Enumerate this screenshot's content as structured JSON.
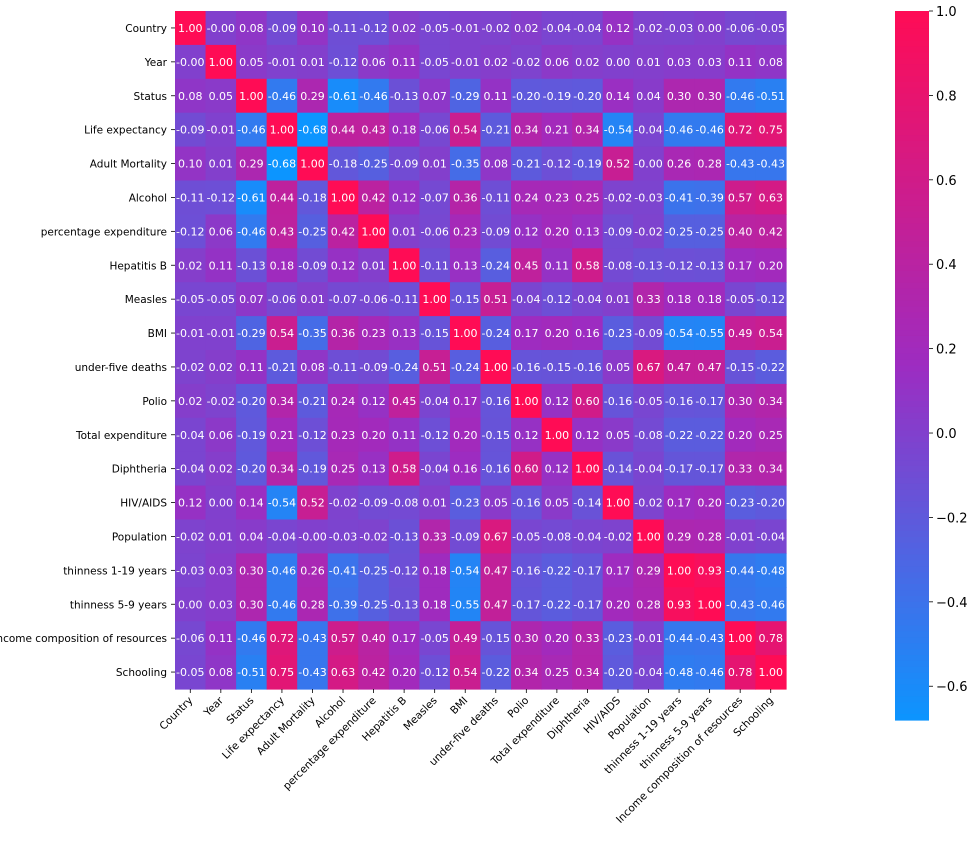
{
  "chart_data": {
    "type": "heatmap",
    "title": "",
    "xlabel": "",
    "ylabel": "",
    "colormap": {
      "low": "#0c95ff",
      "mid": "#9d2cc1",
      "high": "#ff0c55"
    },
    "value_range": [
      -0.68,
      1.0
    ],
    "colorbar_ticks": [
      "1.0",
      "0.8",
      "0.6",
      "0.4",
      "0.2",
      "0.0",
      "−0.2",
      "−0.4",
      "−0.6"
    ],
    "labels": [
      "Country",
      "Year",
      "Status",
      "Life expectancy ",
      "Adult Mortality",
      "Alcohol",
      "percentage expenditure",
      "Hepatitis B",
      "Measles ",
      " BMI ",
      "under-five deaths ",
      "Polio",
      "Total expenditure",
      "Diphtheria ",
      " HIV/AIDS",
      "Population",
      " thinness  1-19 years",
      " thinness 5-9 years",
      "Income composition of resources",
      "Schooling"
    ],
    "matrix": [
      [
        1.0,
        -0.0,
        0.08,
        -0.09,
        0.1,
        -0.11,
        -0.12,
        0.02,
        -0.05,
        -0.01,
        -0.02,
        0.02,
        -0.04,
        -0.04,
        0.12,
        -0.02,
        -0.03,
        0.0,
        -0.06,
        -0.05
      ],
      [
        -0.0,
        1.0,
        0.05,
        -0.01,
        0.01,
        -0.12,
        0.06,
        0.11,
        -0.05,
        -0.01,
        0.02,
        -0.02,
        0.06,
        0.02,
        0.0,
        0.01,
        0.03,
        0.03,
        0.11,
        0.08
      ],
      [
        0.08,
        0.05,
        1.0,
        -0.46,
        0.29,
        -0.61,
        -0.46,
        -0.13,
        0.07,
        -0.29,
        0.11,
        -0.2,
        -0.19,
        -0.2,
        0.14,
        0.04,
        0.3,
        0.3,
        -0.46,
        -0.51
      ],
      [
        -0.09,
        -0.01,
        -0.46,
        1.0,
        -0.68,
        0.44,
        0.43,
        0.18,
        -0.06,
        0.54,
        -0.21,
        0.34,
        0.21,
        0.34,
        -0.54,
        -0.04,
        -0.46,
        -0.46,
        0.72,
        0.75
      ],
      [
        0.1,
        0.01,
        0.29,
        -0.68,
        1.0,
        -0.18,
        -0.25,
        -0.09,
        0.01,
        -0.35,
        0.08,
        -0.21,
        -0.12,
        -0.19,
        0.52,
        -0.0,
        0.26,
        0.28,
        -0.43,
        -0.43
      ],
      [
        -0.11,
        -0.12,
        -0.61,
        0.44,
        -0.18,
        1.0,
        0.42,
        0.12,
        -0.07,
        0.36,
        -0.11,
        0.24,
        0.23,
        0.25,
        -0.02,
        -0.03,
        -0.41,
        -0.39,
        0.57,
        0.63
      ],
      [
        -0.12,
        0.06,
        -0.46,
        0.43,
        -0.25,
        0.42,
        1.0,
        0.01,
        -0.06,
        0.23,
        -0.09,
        0.12,
        0.2,
        0.13,
        -0.09,
        -0.02,
        -0.25,
        -0.25,
        0.4,
        0.42
      ],
      [
        0.02,
        0.11,
        -0.13,
        0.18,
        -0.09,
        0.12,
        0.01,
        1.0,
        -0.11,
        0.13,
        -0.24,
        0.45,
        0.11,
        0.58,
        -0.08,
        -0.13,
        -0.12,
        -0.13,
        0.17,
        0.2
      ],
      [
        -0.05,
        -0.05,
        0.07,
        -0.06,
        0.01,
        -0.07,
        -0.06,
        -0.11,
        1.0,
        -0.15,
        0.51,
        -0.04,
        -0.12,
        -0.04,
        0.01,
        0.33,
        0.18,
        0.18,
        -0.05,
        -0.12
      ],
      [
        -0.01,
        -0.01,
        -0.29,
        0.54,
        -0.35,
        0.36,
        0.23,
        0.13,
        -0.15,
        1.0,
        -0.24,
        0.17,
        0.2,
        0.16,
        -0.23,
        -0.09,
        -0.54,
        -0.55,
        0.49,
        0.54
      ],
      [
        -0.02,
        0.02,
        0.11,
        -0.21,
        0.08,
        -0.11,
        -0.09,
        -0.24,
        0.51,
        -0.24,
        1.0,
        -0.16,
        -0.15,
        -0.16,
        0.05,
        0.67,
        0.47,
        0.47,
        -0.15,
        -0.22
      ],
      [
        0.02,
        -0.02,
        -0.2,
        0.34,
        -0.21,
        0.24,
        0.12,
        0.45,
        -0.04,
        0.17,
        -0.16,
        1.0,
        0.12,
        0.6,
        -0.16,
        -0.05,
        -0.16,
        -0.17,
        0.3,
        0.34
      ],
      [
        -0.04,
        0.06,
        -0.19,
        0.21,
        -0.12,
        0.23,
        0.2,
        0.11,
        -0.12,
        0.2,
        -0.15,
        0.12,
        1.0,
        0.12,
        0.05,
        -0.08,
        -0.22,
        -0.22,
        0.2,
        0.25
      ],
      [
        -0.04,
        0.02,
        -0.2,
        0.34,
        -0.19,
        0.25,
        0.13,
        0.58,
        -0.04,
        0.16,
        -0.16,
        0.6,
        0.12,
        1.0,
        -0.14,
        -0.04,
        -0.17,
        -0.17,
        0.33,
        0.34
      ],
      [
        0.12,
        0.0,
        0.14,
        -0.54,
        0.52,
        -0.02,
        -0.09,
        -0.08,
        0.01,
        -0.23,
        0.05,
        -0.16,
        0.05,
        -0.14,
        1.0,
        -0.02,
        0.17,
        0.2,
        -0.23,
        -0.2
      ],
      [
        -0.02,
        0.01,
        0.04,
        -0.04,
        -0.0,
        -0.03,
        -0.02,
        -0.13,
        0.33,
        -0.09,
        0.67,
        -0.05,
        -0.08,
        -0.04,
        -0.02,
        1.0,
        0.29,
        0.28,
        -0.01,
        -0.04
      ],
      [
        -0.03,
        0.03,
        0.3,
        -0.46,
        0.26,
        -0.41,
        -0.25,
        -0.12,
        0.18,
        -0.54,
        0.47,
        -0.16,
        -0.22,
        -0.17,
        0.17,
        0.29,
        1.0,
        0.93,
        -0.44,
        -0.48
      ],
      [
        0.0,
        0.03,
        0.3,
        -0.46,
        0.28,
        -0.39,
        -0.25,
        -0.13,
        0.18,
        -0.55,
        0.47,
        -0.17,
        -0.22,
        -0.17,
        0.2,
        0.28,
        0.93,
        1.0,
        -0.43,
        -0.46
      ],
      [
        -0.06,
        0.11,
        -0.46,
        0.72,
        -0.43,
        0.57,
        0.4,
        0.17,
        -0.05,
        0.49,
        -0.15,
        0.3,
        0.2,
        0.33,
        -0.23,
        -0.01,
        -0.44,
        -0.43,
        1.0,
        0.78
      ],
      [
        -0.05,
        0.08,
        -0.51,
        0.75,
        -0.43,
        0.63,
        0.42,
        0.2,
        -0.12,
        0.54,
        -0.22,
        0.34,
        0.25,
        0.34,
        -0.2,
        -0.04,
        -0.48,
        -0.46,
        0.78,
        1.0
      ]
    ]
  }
}
